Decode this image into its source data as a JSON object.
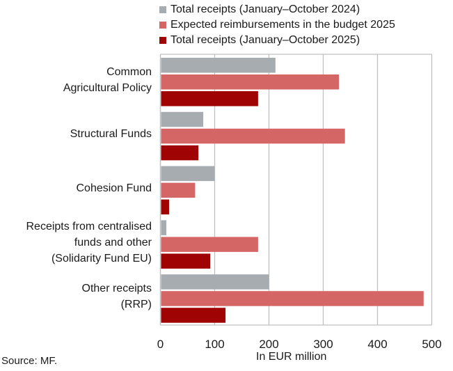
{
  "chart_data": {
    "type": "bar",
    "orientation": "horizontal",
    "title": "",
    "xlabel": "In EUR million",
    "ylabel": "",
    "xlim": [
      0,
      500
    ],
    "xticks": [
      0,
      100,
      200,
      300,
      400,
      500
    ],
    "grid": true,
    "legend_position": "top",
    "categories": [
      [
        "Common",
        "Agricultural Policy"
      ],
      [
        "Structural Funds"
      ],
      [
        "Cohesion Fund"
      ],
      [
        "Receipts from centralised",
        "funds and other",
        "(Solidarity Fund EU)"
      ],
      [
        "Other receipts",
        "(RRP)"
      ]
    ],
    "series": [
      {
        "name": "Total receipts (January–October 2024)",
        "color": "#a7acb1",
        "values": [
          212,
          79,
          100,
          11,
          200
        ]
      },
      {
        "name": "Expected reimbursements in the budget 2025",
        "color": "#d46766",
        "values": [
          329,
          340,
          64,
          180,
          485
        ]
      },
      {
        "name": "Total receipts (January–October 2025)",
        "color": "#a00303",
        "values": [
          180,
          70,
          16,
          92,
          120
        ]
      }
    ],
    "source": "Source: MF."
  }
}
